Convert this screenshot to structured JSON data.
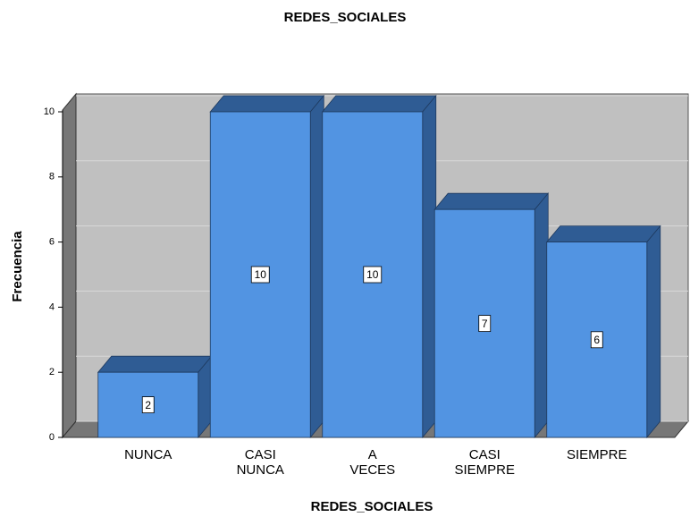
{
  "chart_data": {
    "type": "bar3d",
    "title": "REDES_SOCIALES",
    "x_label": "REDES_SOCIALES",
    "y_label": "Frecuencia",
    "categories": [
      "NUNCA",
      "CASI NUNCA",
      "A VECES",
      "CASI SIEMPRE",
      "SIEMPRE"
    ],
    "values": [
      2,
      10,
      10,
      7,
      6
    ],
    "color": "#5294e2",
    "ylim": [
      0,
      10
    ],
    "yticks": [
      0,
      2,
      4,
      6,
      8,
      10
    ],
    "grid": true
  }
}
